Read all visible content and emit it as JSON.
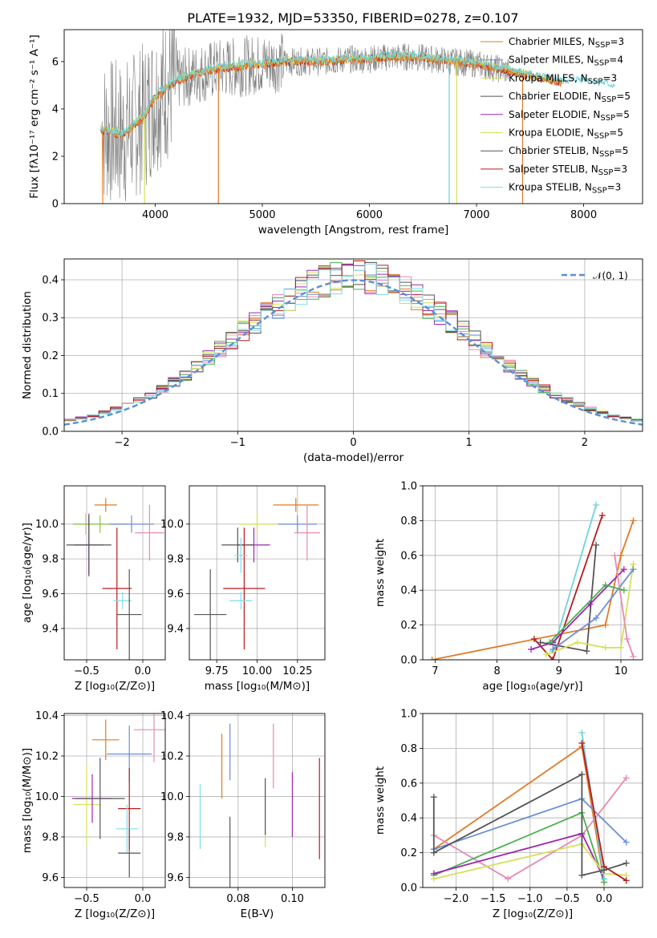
{
  "chart_data": [
    {
      "type": "line",
      "panel": "spectrum",
      "title": "PLATE=1932, MJD=53350, FIBERID=0278, z=0.107",
      "xlabel": "wavelength [Angstrom, rest frame]",
      "ylabel": "Flux [fλ10⁻¹⁷ erg cm⁻² s⁻¹ A⁻¹]",
      "xlim": [
        3150,
        8550
      ],
      "ylim": [
        0,
        7.35
      ],
      "xticks": [
        "4000",
        "5000",
        "6000",
        "7000",
        "8000"
      ],
      "yticks": [
        "0",
        "2",
        "4",
        "6"
      ],
      "legend_position": "upper-right",
      "legend": [
        {
          "label": "Chabrier MILES, N",
          "sub": "SSP",
          "suffix": "=3"
        },
        {
          "label": "Salpeter MILES, N",
          "sub": "SSP",
          "suffix": "=4"
        },
        {
          "label": "Kroupa MILES, N",
          "sub": "SSP",
          "suffix": "=3"
        },
        {
          "label": "Chabrier ELODIE, N",
          "sub": "SSP",
          "suffix": "=5"
        },
        {
          "label": "Salpeter ELODIE, N",
          "sub": "SSP",
          "suffix": "=5"
        },
        {
          "label": "Kroupa ELODIE, N",
          "sub": "SSP",
          "suffix": "=5"
        },
        {
          "label": "Chabrier STELIB, N",
          "sub": "SSP",
          "suffix": "=5"
        },
        {
          "label": "Salpeter STELIB, N",
          "sub": "SSP",
          "suffix": "=3"
        },
        {
          "label": "Kroupa STELIB, N",
          "sub": "SSP",
          "suffix": "=3"
        }
      ],
      "continuum": {
        "x": [
          3500,
          3700,
          3900,
          4000,
          4200,
          4400,
          4600,
          4800,
          5000,
          5200,
          5400,
          5600,
          5800,
          6000,
          6200,
          6400,
          6600,
          6800,
          7000,
          7200,
          7400,
          7600,
          7800,
          8000,
          8200,
          8300
        ],
        "y": [
          3.1,
          2.9,
          3.7,
          4.5,
          5.2,
          5.5,
          5.7,
          5.8,
          5.9,
          6.0,
          6.0,
          6.0,
          6.1,
          6.1,
          6.2,
          6.2,
          6.1,
          6.0,
          5.9,
          5.7,
          5.5,
          5.3,
          5.1,
          5.2,
          5.0,
          4.9
        ]
      },
      "drops": [
        {
          "x": 3510,
          "color": "#ff7f0e"
        },
        {
          "x": 3900,
          "color": "#d4e157"
        },
        {
          "x": 4590,
          "color": "#e07b27"
        },
        {
          "x": 6745,
          "color": "#6fd3d8"
        },
        {
          "x": 6815,
          "color": "#d4e157"
        },
        {
          "x": 7430,
          "color": "#e07b27"
        }
      ]
    },
    {
      "type": "step",
      "panel": "residual-histogram",
      "xlabel": "(data-model)/error",
      "ylabel": "Normed distribution",
      "xlim": [
        -2.5,
        2.5
      ],
      "ylim": [
        0,
        0.455
      ],
      "xticks": [
        "−2",
        "−1",
        "0",
        "1",
        "2"
      ],
      "yticks": [
        "0.0",
        "0.1",
        "0.2",
        "0.3",
        "0.4"
      ],
      "legend": [
        {
          "label": "𝒩(0, 1)"
        }
      ],
      "bin_width": 0.1,
      "reference_curve": "normal(0,1)"
    },
    {
      "type": "errorbar",
      "panel": "age-vs-Z",
      "xlabel": "Z [log₁₀(Z/Z⊙)]",
      "ylabel": "age [log₁₀(age/yr)]",
      "xlim": [
        -0.7,
        0.2
      ],
      "ylim": [
        9.22,
        10.22
      ],
      "xticks": [
        "−0.5",
        "0.0"
      ],
      "yticks": [
        "9.4",
        "9.6",
        "9.8",
        "10.0"
      ],
      "points": [
        {
          "x": -0.51,
          "xerr": 0.11,
          "y": 10.0,
          "yerr": 0.06,
          "color": "#d4e157"
        },
        {
          "x": -0.38,
          "xerr": 0.24,
          "y": 10.0,
          "yerr": 0.05,
          "color": "#8bc34a"
        },
        {
          "x": -0.33,
          "xerr": 0.1,
          "y": 10.11,
          "yerr": 0.04,
          "color": "#e07b27"
        },
        {
          "x": -0.1,
          "xerr": 0.2,
          "y": 10.0,
          "yerr": 0.05,
          "color": "#6a8fd8"
        },
        {
          "x": 0.06,
          "xerr": 0.13,
          "y": 9.95,
          "yerr": 0.16,
          "color": "#e58bb5"
        },
        {
          "x": -0.48,
          "xerr": 0.13,
          "y": 9.88,
          "yerr": 0.18,
          "color": "#9c27b0"
        },
        {
          "x": -0.48,
          "xerr": 0.2,
          "y": 9.88,
          "yerr": 0.17,
          "color": "#555555"
        },
        {
          "x": -0.23,
          "xerr": 0.13,
          "y": 9.63,
          "yerr": 0.35,
          "color": "#b71c1c"
        },
        {
          "x": -0.18,
          "xerr": 0.08,
          "y": 9.56,
          "yerr": 0.05,
          "color": "#80deea"
        },
        {
          "x": -0.12,
          "xerr": 0.11,
          "y": 9.48,
          "yerr": 0.26,
          "color": "#555555"
        }
      ]
    },
    {
      "type": "errorbar",
      "panel": "age-vs-mass",
      "xlabel": "mass [log₁₀(M/M⊙)]",
      "xlim": [
        9.58,
        10.42
      ],
      "ylim": [
        9.22,
        10.22
      ],
      "xticks": [
        "9.75",
        "10.00",
        "10.25"
      ],
      "yticks": [
        "9.4",
        "9.6",
        "9.8",
        "10.0"
      ]
    },
    {
      "type": "line",
      "panel": "mass-weight-vs-age",
      "xlabel": "age [log₁₀(age/yr)]",
      "ylabel": "mass weight",
      "xlim": [
        6.8,
        10.35
      ],
      "ylim": [
        0,
        1
      ],
      "xticks": [
        "7",
        "8",
        "9",
        "10"
      ],
      "yticks": [
        "0.0",
        "0.2",
        "0.4",
        "0.6",
        "0.8",
        "1.0"
      ],
      "series": [
        {
          "color": "#e07b27",
          "x": [
            6.95,
            9.75,
            10.0,
            10.2
          ],
          "y": [
            0.0,
            0.2,
            0.6,
            0.8
          ]
        },
        {
          "color": "#6fd3d8",
          "x": [
            8.9,
            9.6
          ],
          "y": [
            0.05,
            0.89
          ]
        },
        {
          "color": "#b71c1c",
          "x": [
            8.6,
            8.9,
            9.7
          ],
          "y": [
            0.12,
            0.0,
            0.83
          ]
        },
        {
          "color": "#555555",
          "x": [
            8.7,
            9.45,
            9.6
          ],
          "y": [
            0.1,
            0.05,
            0.66
          ]
        },
        {
          "color": "#9c27b0",
          "x": [
            8.55,
            8.9,
            9.5,
            10.05
          ],
          "y": [
            0.06,
            0.1,
            0.32,
            0.52
          ]
        },
        {
          "color": "#d4e157",
          "x": [
            8.8,
            9.3,
            9.75,
            10.0,
            10.2
          ],
          "y": [
            0.03,
            0.1,
            0.07,
            0.07,
            0.55
          ]
        },
        {
          "color": "#6a8fd8",
          "x": [
            8.9,
            9.6,
            10.2
          ],
          "y": [
            0.06,
            0.24,
            0.52
          ]
        },
        {
          "color": "#e58bb5",
          "x": [
            9.9,
            10.1,
            10.2
          ],
          "y": [
            0.6,
            0.12,
            0.02
          ]
        },
        {
          "color": "#4caf50",
          "x": [
            8.85,
            9.75,
            10.05
          ],
          "y": [
            0.1,
            0.43,
            0.4
          ]
        }
      ]
    },
    {
      "type": "errorbar",
      "panel": "mass-vs-Z",
      "xlabel": "Z [log₁₀(Z/Z⊙)]",
      "ylabel": "mass [log₁₀(M/M⊙)]",
      "xlim": [
        -0.7,
        0.2
      ],
      "ylim": [
        9.55,
        10.41
      ],
      "xticks": [
        "−0.5",
        "0.0"
      ],
      "yticks": [
        "9.6",
        "9.8",
        "10.0",
        "10.2",
        "10.4"
      ]
    },
    {
      "type": "errorbar",
      "panel": "mass-vs-EBV",
      "xlabel": "E(B-V)",
      "xlim": [
        0.062,
        0.112
      ],
      "ylim": [
        9.55,
        10.41
      ],
      "xticks": [
        "0.08",
        "0.10"
      ],
      "yticks": [
        "9.6",
        "9.8",
        "10.0",
        "10.2",
        "10.4"
      ]
    },
    {
      "type": "line",
      "panel": "mass-weight-vs-Z",
      "xlabel": "Z [log₁₀(Z/Z⊙)]",
      "ylabel": "mass weight",
      "xlim": [
        -2.45,
        0.52
      ],
      "ylim": [
        0,
        1
      ],
      "xticks": [
        "−2.0",
        "−1.5",
        "−1.0",
        "−0.5",
        "0.0"
      ],
      "yticks": [
        "0.0",
        "0.2",
        "0.4",
        "0.6",
        "0.8",
        "1.0"
      ],
      "series": [
        {
          "color": "#e07b27",
          "x": [
            -2.3,
            -0.3,
            0.0
          ],
          "y": [
            0.22,
            0.81,
            0.03
          ]
        },
        {
          "color": "#6a8fd8",
          "x": [
            -2.3,
            -0.3,
            0.3
          ],
          "y": [
            0.22,
            0.51,
            0.26
          ]
        },
        {
          "color": "#e58bb5",
          "x": [
            -2.3,
            -1.3,
            -0.3,
            0.3
          ],
          "y": [
            0.3,
            0.05,
            0.3,
            0.63
          ]
        },
        {
          "color": "#4caf50",
          "x": [
            -2.3,
            -0.3,
            0.0
          ],
          "y": [
            0.07,
            0.43,
            0.03
          ]
        },
        {
          "color": "#9c27b0",
          "x": [
            -2.3,
            -0.3,
            0.0
          ],
          "y": [
            0.08,
            0.31,
            0.05
          ]
        },
        {
          "color": "#d4e157",
          "x": [
            -2.3,
            -0.3,
            0.0,
            0.3
          ],
          "y": [
            0.05,
            0.25,
            0.08,
            0.07
          ]
        },
        {
          "color": "#6fd3d8",
          "x": [
            -0.3,
            0.0
          ],
          "y": [
            0.89,
            0.05
          ]
        },
        {
          "color": "#b71c1c",
          "x": [
            -0.3,
            0.0,
            0.3
          ],
          "y": [
            0.83,
            0.12,
            0.04
          ]
        },
        {
          "color": "#555555",
          "x": [
            -2.3,
            -2.3,
            -0.3,
            -0.3,
            0.0,
            0.3
          ],
          "y": [
            0.52,
            0.2,
            0.65,
            0.07,
            0.1,
            0.14
          ]
        }
      ]
    }
  ]
}
